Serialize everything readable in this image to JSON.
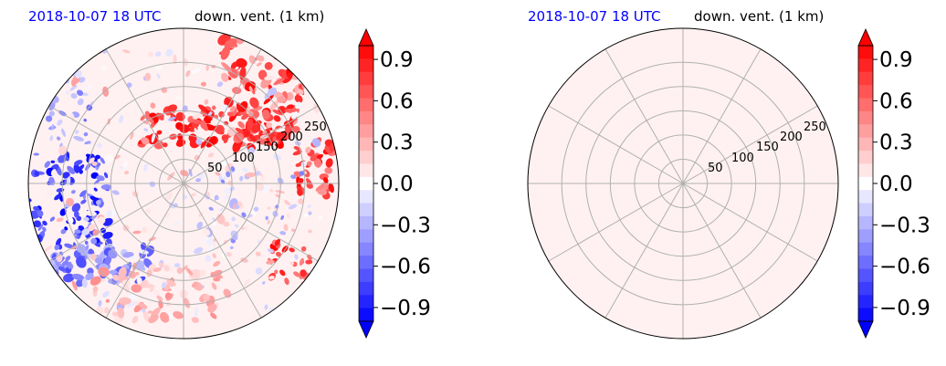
{
  "panels": [
    {
      "title_time": "2018-10-07 18 UTC",
      "title_var": "down. vent. (1 km)",
      "range_ring_labels": [
        "50",
        "100",
        "150",
        "200",
        "250"
      ],
      "field": "speckled"
    },
    {
      "title_time": "2018-10-07 18 UTC",
      "title_var": "down. vent. (1 km)",
      "range_ring_labels": [
        "50",
        "100",
        "150",
        "200",
        "250"
      ],
      "field": "uniform"
    }
  ],
  "colorbar": {
    "tick_labels": [
      "0.9",
      "0.6",
      "0.3",
      "0.0",
      "−0.3",
      "−0.6",
      "−0.9"
    ],
    "vmin": -1.0,
    "vmax": 1.0,
    "levels": 21,
    "extend": "both",
    "colormap": "bwr",
    "color_min": "#0000ff",
    "color_mid": "#ffffff",
    "color_max": "#ff0000"
  },
  "chart_data": [
    {
      "type": "heatmap",
      "projection": "polar",
      "title": "2018-10-07 18 UTC   down. vent. (1 km)",
      "range_rings": [
        50,
        100,
        150,
        200,
        250
      ],
      "radial_spokes_deg": [
        0,
        30,
        60,
        90,
        120,
        150,
        180,
        210,
        240,
        270,
        300,
        330
      ],
      "background_value": 0.05,
      "features": [
        {
          "region": "north-east, ranges 100-250",
          "value": 0.9,
          "pattern": "strong positive cells"
        },
        {
          "region": "far east edge",
          "value": 0.9,
          "pattern": "positive cells"
        },
        {
          "region": "west, ranges 100-250",
          "value": -0.9,
          "pattern": "negative streaks"
        },
        {
          "region": "south-west",
          "value": -0.5,
          "pattern": "weak negative bands"
        },
        {
          "region": "south",
          "value": 0.3,
          "pattern": "weak positive patches"
        }
      ],
      "colorbar_range": [
        -1.0,
        1.0
      ]
    },
    {
      "type": "heatmap",
      "projection": "polar",
      "title": "2018-10-07 18 UTC   down. vent. (1 km)",
      "range_rings": [
        50,
        100,
        150,
        200,
        250
      ],
      "radial_spokes_deg": [
        0,
        30,
        60,
        90,
        120,
        150,
        180,
        210,
        240,
        270,
        300,
        330
      ],
      "uniform_value": 0.05,
      "colorbar_range": [
        -1.0,
        1.0
      ]
    }
  ]
}
